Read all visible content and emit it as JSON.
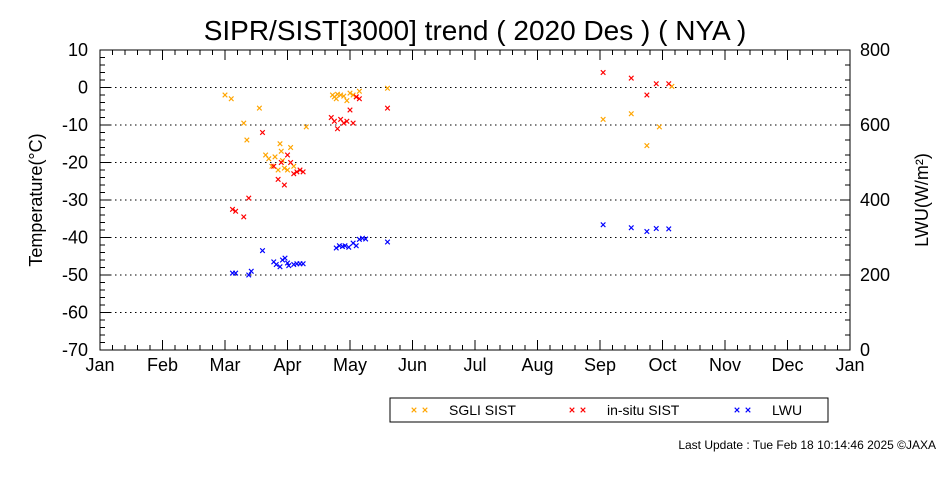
{
  "chart_data": {
    "type": "scatter",
    "title": "SIPR/SIST[3000] trend ( 2020 Des ) ( NYA )",
    "ylabel": "Temperature(°C)",
    "y2label": "LWU(W/m²)",
    "ylim": [
      -70,
      10
    ],
    "y2lim": [
      0,
      800
    ],
    "yticks": [
      "10",
      "0",
      "-10",
      "-20",
      "-30",
      "-40",
      "-50",
      "-60",
      "-70"
    ],
    "y2ticks": [
      "800",
      "600",
      "400",
      "200",
      "0"
    ],
    "months": [
      "Jan",
      "Feb",
      "Mar",
      "Apr",
      "May",
      "Jun",
      "Jul",
      "Aug",
      "Sep",
      "Oct",
      "Nov",
      "Dec",
      "Jan"
    ],
    "grid": "dotted horizontal at every 10°C",
    "legend_position": "bottom",
    "series": [
      {
        "name": "SGLI SIST",
        "color": "#ffa500",
        "axis": "left",
        "points": [
          [
            2.0,
            -2.0
          ],
          [
            2.1,
            -3.0
          ],
          [
            2.3,
            -9.5
          ],
          [
            2.35,
            -14.0
          ],
          [
            2.55,
            -5.5
          ],
          [
            2.65,
            -18.0
          ],
          [
            2.7,
            -19.0
          ],
          [
            2.75,
            -21.0
          ],
          [
            2.8,
            -18.5
          ],
          [
            2.85,
            -22.0
          ],
          [
            2.88,
            -15.0
          ],
          [
            2.9,
            -17.0
          ],
          [
            2.92,
            -19.5
          ],
          [
            2.95,
            -21.5
          ],
          [
            3.0,
            -22.0
          ],
          [
            3.05,
            -16.0
          ],
          [
            3.1,
            -21.0
          ],
          [
            3.3,
            -10.5
          ],
          [
            3.72,
            -2.0
          ],
          [
            3.75,
            -2.5
          ],
          [
            3.78,
            -3.0
          ],
          [
            3.8,
            -1.8
          ],
          [
            3.85,
            -2.0
          ],
          [
            3.9,
            -2.3
          ],
          [
            3.95,
            -3.5
          ],
          [
            4.0,
            -1.5
          ],
          [
            4.05,
            -2.0
          ],
          [
            4.1,
            -2.5
          ],
          [
            4.15,
            -1.0
          ],
          [
            4.6,
            -0.2
          ],
          [
            8.05,
            -8.5
          ],
          [
            8.5,
            -7.0
          ],
          [
            8.75,
            -15.5
          ],
          [
            8.95,
            -10.5
          ],
          [
            9.15,
            0.3
          ]
        ]
      },
      {
        "name": "in-situ SIST",
        "color": "#ff0000",
        "axis": "left",
        "points": [
          [
            2.12,
            -32.5
          ],
          [
            2.17,
            -33.0
          ],
          [
            2.3,
            -34.5
          ],
          [
            2.38,
            -29.5
          ],
          [
            2.6,
            -12.0
          ],
          [
            2.78,
            -21.0
          ],
          [
            2.85,
            -24.5
          ],
          [
            2.9,
            -20.0
          ],
          [
            2.95,
            -26.0
          ],
          [
            3.0,
            -18.0
          ],
          [
            3.05,
            -20.0
          ],
          [
            3.1,
            -23.0
          ],
          [
            3.15,
            -22.5
          ],
          [
            3.2,
            -22.0
          ],
          [
            3.25,
            -22.5
          ],
          [
            3.7,
            -8.0
          ],
          [
            3.75,
            -9.0
          ],
          [
            3.8,
            -11.0
          ],
          [
            3.85,
            -8.5
          ],
          [
            3.9,
            -9.5
          ],
          [
            3.95,
            -9.0
          ],
          [
            4.0,
            -6.0
          ],
          [
            4.05,
            -9.5
          ],
          [
            4.1,
            -2.5
          ],
          [
            4.15,
            -3.0
          ],
          [
            4.6,
            -5.5
          ],
          [
            8.05,
            4.0
          ],
          [
            8.5,
            2.5
          ],
          [
            8.75,
            -2.0
          ],
          [
            8.9,
            1.0
          ],
          [
            9.1,
            1.0
          ]
        ]
      },
      {
        "name": "LWU",
        "color": "#0000ff",
        "axis": "right",
        "points": [
          [
            2.12,
            205
          ],
          [
            2.17,
            205
          ],
          [
            2.38,
            200
          ],
          [
            2.42,
            210
          ],
          [
            2.6,
            265
          ],
          [
            2.78,
            235
          ],
          [
            2.82,
            228
          ],
          [
            2.88,
            222
          ],
          [
            2.92,
            240
          ],
          [
            2.96,
            245
          ],
          [
            3.0,
            232
          ],
          [
            3.02,
            225
          ],
          [
            3.1,
            228
          ],
          [
            3.15,
            230
          ],
          [
            3.2,
            230
          ],
          [
            3.25,
            230
          ],
          [
            3.78,
            272
          ],
          [
            3.83,
            278
          ],
          [
            3.88,
            276
          ],
          [
            3.92,
            278
          ],
          [
            3.98,
            274
          ],
          [
            4.05,
            285
          ],
          [
            4.1,
            278
          ],
          [
            4.15,
            295
          ],
          [
            4.2,
            298
          ],
          [
            4.25,
            296
          ],
          [
            4.6,
            288
          ],
          [
            8.05,
            334
          ],
          [
            8.5,
            326
          ],
          [
            8.75,
            316
          ],
          [
            8.9,
            324
          ],
          [
            9.1,
            323
          ]
        ]
      }
    ]
  },
  "legend": {
    "items": [
      {
        "label": "SGLI SIST",
        "color": "#ffa500"
      },
      {
        "label": "in-situ SIST",
        "color": "#ff0000"
      },
      {
        "label": "LWU",
        "color": "#0000ff"
      }
    ]
  },
  "footer": {
    "text": "Last Update : Tue Feb 18 10:14:46 2025  ©JAXA"
  }
}
